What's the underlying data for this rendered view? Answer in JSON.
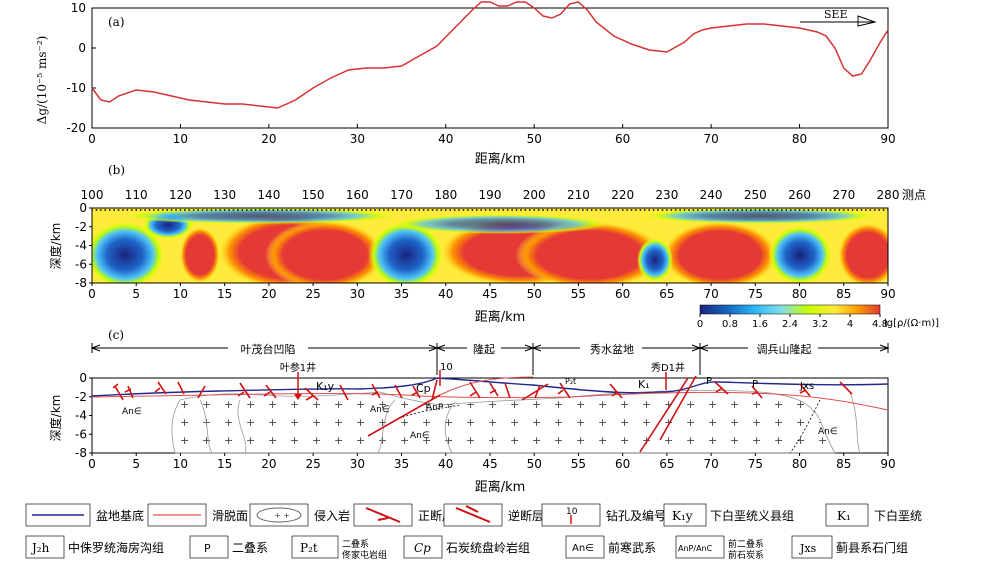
{
  "panel_a": {
    "label": "(a)",
    "ylabel": "Δg/(10⁻⁵ ms⁻²)",
    "xlabel": "距离/km",
    "direction": "SEE",
    "line_color": "#d73232"
  },
  "panel_b": {
    "label": "(b)",
    "station_label": "测点",
    "stations": [
      "100",
      "110",
      "120",
      "130",
      "140",
      "150",
      "160",
      "170",
      "180",
      "190",
      "200",
      "210",
      "220",
      "230",
      "240",
      "250",
      "260",
      "270",
      "280"
    ],
    "ylabel": "深度/km",
    "xlabel": "距离/km",
    "colorbar_ticks": [
      "0",
      "0.8",
      "1.6",
      "2.4",
      "3.2",
      "4",
      "4.8"
    ],
    "colorbar_label": "lg[ρ/(Ω·m)]"
  },
  "panel_c": {
    "label": "(c)",
    "ylabel": "深度/km",
    "xlabel": "距离/km",
    "regions": [
      "叶茂台凹陷",
      "隆起",
      "秀水盆地",
      "调兵山隆起"
    ],
    "well_labels": [
      "叶参1井",
      "10",
      "秀D1井"
    ],
    "units": [
      "K₁y",
      "Cp",
      "AnP",
      "P₂t",
      "K₁",
      "P",
      "P",
      "Jxs",
      "An∈",
      "An∈",
      "An∈",
      "An∈"
    ]
  },
  "legend": {
    "items": [
      "盆地基底",
      "滑脱面",
      "侵入岩",
      "正断层",
      "逆断层",
      "钻孔及编号",
      "下白垩统义县组",
      "下白垩统",
      "中侏罗统海房沟组",
      "二叠系",
      "二叠系\n佟家屯岩组",
      "石炭统盘岭岩组",
      "前寒武系",
      "前二叠系\n前石炭系",
      "蓟县系石门组"
    ],
    "swatch_texts": [
      "K₁y",
      "K₁",
      "J₂h",
      "P",
      "P₂t",
      "Cp",
      "An∈",
      "AnP/AnC",
      "Jxs",
      "10"
    ]
  },
  "chart_data": [
    {
      "type": "line",
      "title": "(a)",
      "xlabel": "距离/km",
      "ylabel": "Δg/(10⁻⁵ ms⁻²)",
      "xlim": [
        0,
        90
      ],
      "ylim": [
        -20,
        10
      ],
      "xticks": [
        0,
        10,
        20,
        30,
        40,
        50,
        60,
        70,
        80,
        90
      ],
      "yticks": [
        -20,
        -10,
        0,
        10
      ],
      "series": [
        {
          "x": [
            0,
            1,
            2,
            3,
            5,
            7,
            9,
            11,
            13,
            15,
            17,
            19,
            21,
            23,
            25,
            27,
            29,
            31,
            33,
            35,
            37,
            39,
            41,
            43,
            44,
            45,
            46,
            47,
            48,
            49,
            50,
            51,
            52,
            53,
            54,
            55,
            56,
            57,
            59,
            61,
            63,
            65,
            67,
            68,
            69,
            70,
            72,
            74,
            76,
            78,
            80,
            82,
            83,
            84,
            85,
            86,
            87,
            88,
            89,
            90
          ],
          "y": [
            -10,
            -13,
            -13.5,
            -12,
            -10.5,
            -11,
            -12,
            -13,
            -13.5,
            -14,
            -14,
            -14.5,
            -15,
            -13,
            -10,
            -7.5,
            -5.5,
            -5,
            -5,
            -4.5,
            -2,
            0.5,
            5,
            9.5,
            11.5,
            11.5,
            10.5,
            10.5,
            11.5,
            11.5,
            10,
            8,
            7.5,
            8.5,
            11,
            11.5,
            9.5,
            6.5,
            3,
            1,
            -0.5,
            -1,
            1.5,
            3.5,
            4.5,
            5,
            5.5,
            6,
            6,
            5.5,
            5,
            4,
            3,
            0,
            -5,
            -7,
            -6.5,
            -3,
            1,
            4.5
          ]
        }
      ]
    },
    {
      "type": "heatmap",
      "title": "(b)",
      "xlabel": "距离/km",
      "ylabel": "深度/km",
      "xlim": [
        0,
        90
      ],
      "ylim": [
        -8,
        0
      ],
      "xticks": [
        0,
        5,
        10,
        15,
        20,
        25,
        30,
        35,
        40,
        45,
        50,
        55,
        60,
        65,
        70,
        75,
        80,
        85,
        90
      ],
      "yticks": [
        0,
        -2,
        -4,
        -6,
        -8
      ],
      "colorbar": {
        "label": "lg[ρ/(Ω·m)]",
        "range": [
          0,
          4.8
        ],
        "ticks": [
          0,
          0.8,
          1.6,
          2.4,
          3.2,
          4,
          4.8
        ]
      }
    },
    {
      "type": "diagram",
      "title": "(c)",
      "xlabel": "距离/km",
      "ylabel": "深度/km",
      "xlim": [
        0,
        90
      ],
      "ylim": [
        -8,
        0
      ],
      "xticks": [
        0,
        5,
        10,
        15,
        20,
        25,
        30,
        35,
        40,
        45,
        50,
        55,
        60,
        65,
        70,
        75,
        80,
        85,
        90
      ],
      "yticks": [
        0,
        -2,
        -4,
        -6,
        -8
      ]
    }
  ]
}
